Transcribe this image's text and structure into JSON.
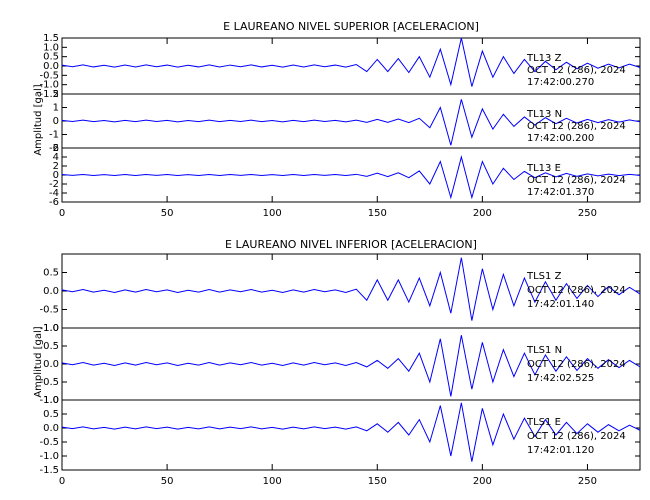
{
  "chart_data": [
    {
      "type": "line",
      "title": "E LAUREANO NIVEL SUPERIOR [ACELERACION]",
      "ylabel": "Amplitud [gal]",
      "xlim": [
        0,
        275
      ],
      "xticks": [
        0,
        50,
        100,
        150,
        200,
        250
      ],
      "x": [
        0,
        5,
        10,
        15,
        20,
        25,
        30,
        35,
        40,
        45,
        50,
        55,
        60,
        65,
        70,
        75,
        80,
        85,
        90,
        95,
        100,
        105,
        110,
        115,
        120,
        125,
        130,
        135,
        140,
        145,
        150,
        155,
        160,
        165,
        170,
        175,
        180,
        185,
        190,
        195,
        200,
        205,
        210,
        215,
        220,
        225,
        230,
        235,
        240,
        245,
        250,
        255,
        260,
        265,
        270,
        275
      ],
      "series": [
        {
          "color": "#0000ff",
          "annotation": [
            "TL13   Z",
            "OCT 12 (286), 2024",
            "17:42:00.270"
          ],
          "ylim": [
            -1.5,
            1.5
          ],
          "yticks": [
            1.5,
            {
              "value": 1,
              "label": "1.0"
            },
            0.5,
            {
              "value": 0,
              "label": "0.0"
            },
            -0.5,
            {
              "value": -1,
              "label": "-1.0"
            },
            -1.5
          ],
          "values": [
            0.05,
            -0.04,
            0.06,
            -0.05,
            0.04,
            -0.06,
            0.05,
            -0.05,
            0.06,
            -0.04,
            0.05,
            -0.06,
            0.04,
            -0.05,
            0.06,
            -0.05,
            0.05,
            -0.04,
            0.06,
            -0.05,
            0.04,
            -0.06,
            0.05,
            -0.05,
            0.06,
            -0.04,
            0.05,
            -0.06,
            0.08,
            -0.3,
            0.35,
            -0.3,
            0.4,
            -0.35,
            0.5,
            -0.6,
            0.9,
            -1.0,
            1.5,
            -1.1,
            0.8,
            -0.6,
            0.5,
            -0.4,
            0.35,
            -0.3,
            0.25,
            -0.2,
            0.2,
            -0.15,
            0.15,
            -0.12,
            0.1,
            -0.1,
            0.1,
            -0.08
          ]
        },
        {
          "color": "#0000ff",
          "annotation": [
            "TL13   N",
            "OCT 12 (286), 2024",
            "17:42:00.200"
          ],
          "ylim": [
            -2,
            2
          ],
          "yticks": [
            2,
            1,
            0,
            -1,
            -2
          ],
          "values": [
            0.05,
            -0.04,
            0.06,
            -0.05,
            0.04,
            -0.06,
            0.05,
            -0.05,
            0.06,
            -0.04,
            0.05,
            -0.06,
            0.04,
            -0.05,
            0.06,
            -0.05,
            0.05,
            -0.04,
            0.06,
            -0.05,
            0.04,
            -0.06,
            0.05,
            -0.05,
            0.06,
            -0.04,
            0.05,
            -0.06,
            0.06,
            -0.1,
            0.12,
            -0.1,
            0.15,
            -0.12,
            0.2,
            -0.5,
            1.0,
            -1.8,
            1.6,
            -1.2,
            0.9,
            -0.6,
            0.5,
            -0.4,
            0.3,
            -0.3,
            0.25,
            -0.2,
            0.2,
            -0.15,
            0.12,
            -0.12,
            0.1,
            -0.08,
            0.08,
            -0.06
          ]
        },
        {
          "color": "#0000ff",
          "annotation": [
            "TL13   E",
            "OCT 12 (286), 2024",
            "17:42:01.370"
          ],
          "ylim": [
            -6,
            6
          ],
          "yticks": [
            6,
            4,
            2,
            0,
            -2,
            -4,
            -6
          ],
          "values": [
            0.1,
            -0.08,
            0.12,
            -0.1,
            0.08,
            -0.12,
            0.1,
            -0.1,
            0.12,
            -0.08,
            0.1,
            -0.12,
            0.08,
            -0.1,
            0.12,
            -0.1,
            0.1,
            -0.08,
            0.12,
            -0.1,
            0.08,
            -0.12,
            0.1,
            -0.1,
            0.12,
            -0.08,
            0.1,
            -0.12,
            0.15,
            -0.3,
            0.4,
            -0.35,
            0.5,
            -0.6,
            0.9,
            -2.0,
            3.0,
            -5.0,
            4.0,
            -5.0,
            3.0,
            -2.0,
            1.5,
            -1.0,
            0.8,
            -0.6,
            0.5,
            -0.4,
            0.35,
            -0.3,
            0.25,
            -0.2,
            0.2,
            -0.15,
            0.15,
            -0.1
          ]
        }
      ]
    },
    {
      "type": "line",
      "title": "E LAUREANO NIVEL INFERIOR [ACELERACION]",
      "ylabel": "Amplitud [gal]",
      "xlim": [
        0,
        275
      ],
      "xticks": [
        0,
        50,
        100,
        150,
        200,
        250
      ],
      "x": [
        0,
        5,
        10,
        15,
        20,
        25,
        30,
        35,
        40,
        45,
        50,
        55,
        60,
        65,
        70,
        75,
        80,
        85,
        90,
        95,
        100,
        105,
        110,
        115,
        120,
        125,
        130,
        135,
        140,
        145,
        150,
        155,
        160,
        165,
        170,
        175,
        180,
        185,
        190,
        195,
        200,
        205,
        210,
        215,
        220,
        225,
        230,
        235,
        240,
        245,
        250,
        255,
        260,
        265,
        270,
        275
      ],
      "series": [
        {
          "color": "#0000ff",
          "annotation": [
            "TLS1   Z",
            "OCT 12 (286), 2024",
            "17:42:01.140"
          ],
          "ylim": [
            -1,
            1
          ],
          "yticks": [
            0.5,
            {
              "value": 0,
              "label": "0.0"
            },
            -0.5,
            {
              "value": -1,
              "label": "-1.0"
            }
          ],
          "values": [
            0.03,
            -0.02,
            0.04,
            -0.03,
            0.02,
            -0.04,
            0.03,
            -0.03,
            0.04,
            -0.02,
            0.03,
            -0.04,
            0.02,
            -0.03,
            0.04,
            -0.03,
            0.03,
            -0.02,
            0.04,
            -0.03,
            0.02,
            -0.04,
            0.03,
            -0.03,
            0.04,
            -0.02,
            0.03,
            -0.04,
            0.05,
            -0.25,
            0.3,
            -0.25,
            0.3,
            -0.3,
            0.35,
            -0.4,
            0.5,
            -0.6,
            0.9,
            -0.8,
            0.6,
            -0.5,
            0.45,
            -0.4,
            0.35,
            -0.3,
            0.25,
            -0.25,
            0.2,
            -0.2,
            0.15,
            -0.15,
            0.12,
            -0.1,
            0.1,
            -0.08
          ]
        },
        {
          "color": "#0000ff",
          "annotation": [
            "TLS1   N",
            "OCT 12 (286), 2024",
            "17:42:02.525"
          ],
          "ylim": [
            -1,
            1
          ],
          "yticks": [
            {
              "value": 1,
              "label": "1.0"
            },
            0.5,
            {
              "value": 0,
              "label": "0.0"
            },
            -0.5,
            {
              "value": -1,
              "label": "-1.0"
            }
          ],
          "values": [
            0.03,
            -0.02,
            0.04,
            -0.03,
            0.02,
            -0.04,
            0.03,
            -0.03,
            0.04,
            -0.02,
            0.03,
            -0.04,
            0.02,
            -0.03,
            0.04,
            -0.03,
            0.03,
            -0.02,
            0.04,
            -0.03,
            0.02,
            -0.04,
            0.03,
            -0.03,
            0.04,
            -0.02,
            0.03,
            -0.04,
            0.04,
            -0.08,
            0.1,
            -0.12,
            0.15,
            -0.2,
            0.3,
            -0.5,
            0.7,
            -0.9,
            0.8,
            -0.7,
            0.6,
            -0.5,
            0.4,
            -0.35,
            0.3,
            -0.3,
            0.25,
            -0.2,
            0.2,
            -0.18,
            0.15,
            -0.12,
            0.12,
            -0.1,
            0.1,
            -0.08
          ]
        },
        {
          "color": "#0000ff",
          "annotation": [
            "TLS1   E",
            "OCT 12 (286), 2024",
            "17:42:01.120"
          ],
          "ylim": [
            -1.5,
            1
          ],
          "yticks": [
            {
              "value": 1,
              "label": "1.0"
            },
            0.5,
            {
              "value": 0,
              "label": "0.0"
            },
            -0.5,
            {
              "value": -1,
              "label": "-1.0"
            },
            -1.5
          ],
          "values": [
            0.03,
            -0.02,
            0.04,
            -0.03,
            0.02,
            -0.04,
            0.03,
            -0.03,
            0.04,
            -0.02,
            0.03,
            -0.04,
            0.02,
            -0.03,
            0.04,
            -0.03,
            0.03,
            -0.02,
            0.04,
            -0.03,
            0.02,
            -0.04,
            0.03,
            -0.03,
            0.04,
            -0.02,
            0.03,
            -0.04,
            0.04,
            -0.1,
            0.15,
            -0.15,
            0.2,
            -0.25,
            0.3,
            -0.5,
            0.8,
            -1.0,
            0.9,
            -1.2,
            0.7,
            -0.6,
            0.5,
            -0.4,
            0.35,
            -0.3,
            0.3,
            -0.25,
            0.2,
            -0.2,
            0.15,
            -0.15,
            0.12,
            -0.1,
            0.1,
            -0.08
          ]
        }
      ]
    }
  ]
}
